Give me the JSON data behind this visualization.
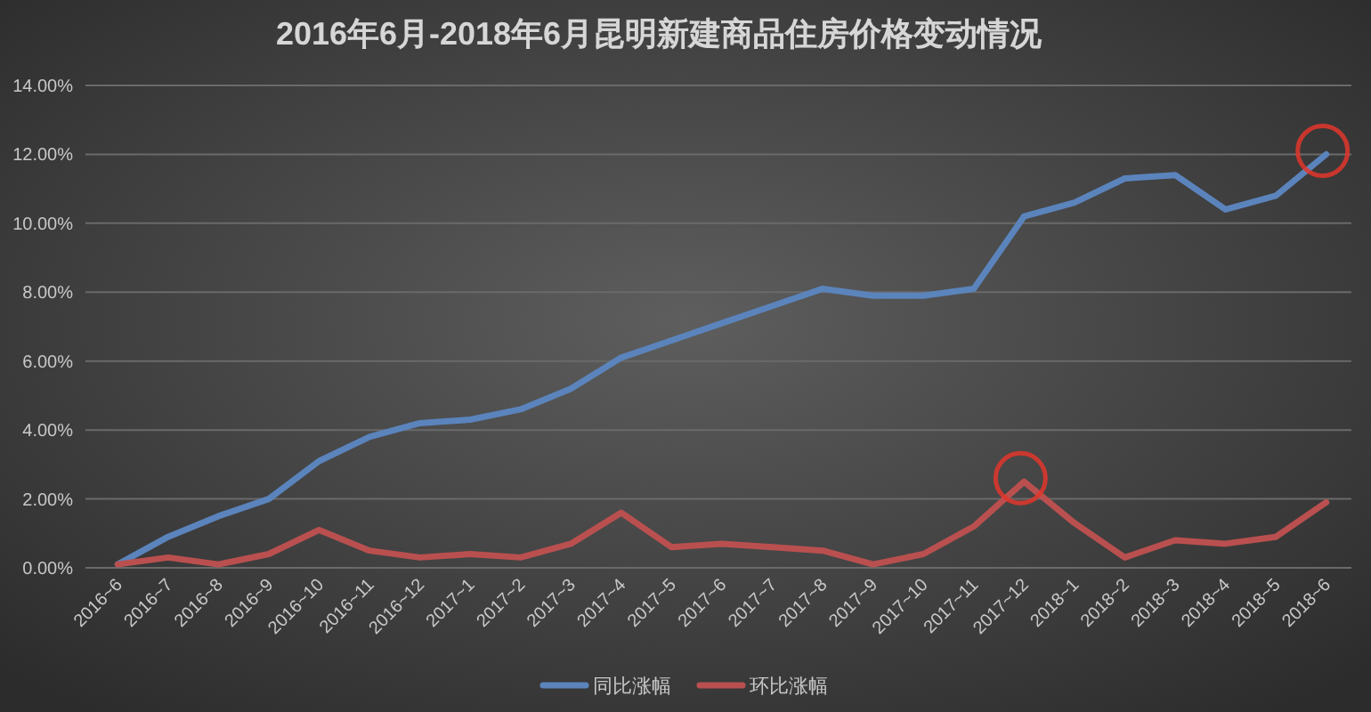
{
  "chart_data": {
    "type": "line",
    "title": "2016年6月-2018年6月昆明新建商品住房价格变动情况",
    "categories": [
      "2016~6",
      "2016~7",
      "2016~8",
      "2016~9",
      "2016~10",
      "2016~11",
      "2016~12",
      "2017~1",
      "2017~2",
      "2017~3",
      "2017~4",
      "2017~5",
      "2017~6",
      "2017~7",
      "2017~8",
      "2017~9",
      "2017~10",
      "2017~11",
      "2017~12",
      "2018~1",
      "2018~2",
      "2018~3",
      "2018~4",
      "2018~5",
      "2018~6"
    ],
    "ylim": [
      0,
      14
    ],
    "yticks": [
      {
        "value": 0,
        "label": "0.00%"
      },
      {
        "value": 2,
        "label": "2.00%"
      },
      {
        "value": 4,
        "label": "4.00%"
      },
      {
        "value": 6,
        "label": "6.00%"
      },
      {
        "value": 8,
        "label": "8.00%"
      },
      {
        "value": 10,
        "label": "10.00%"
      },
      {
        "value": 12,
        "label": "12.00%"
      },
      {
        "value": 14,
        "label": "14.00%"
      }
    ],
    "grid": "y",
    "legend": "bottom",
    "series": [
      {
        "name": "同比涨幅",
        "color": "#5b84bc",
        "values": [
          0.1,
          0.9,
          1.5,
          2.0,
          3.1,
          3.8,
          4.2,
          4.3,
          4.6,
          5.2,
          6.1,
          6.6,
          7.1,
          7.6,
          8.1,
          7.9,
          7.9,
          8.1,
          10.2,
          10.6,
          11.3,
          11.4,
          10.4,
          10.8,
          12.0
        ]
      },
      {
        "name": "环比涨幅",
        "color": "#b9504f",
        "values": [
          0.1,
          0.3,
          0.1,
          0.4,
          1.1,
          0.5,
          0.3,
          0.4,
          0.3,
          0.7,
          1.6,
          0.6,
          0.7,
          0.6,
          0.5,
          0.1,
          0.4,
          1.2,
          2.5,
          1.3,
          0.3,
          0.8,
          0.7,
          0.9,
          1.9
        ]
      }
    ]
  }
}
